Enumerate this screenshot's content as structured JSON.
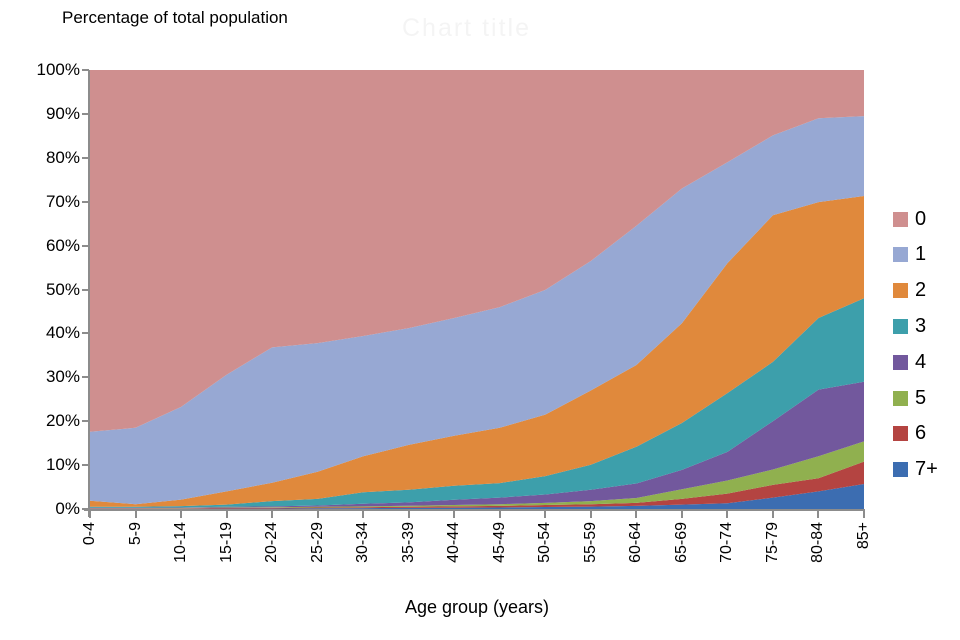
{
  "watermark": {
    "text": "Chart title"
  },
  "chart_data": {
    "type": "area",
    "stacking": "percent",
    "title": "Percentage of total population",
    "xlabel": "Age group (years)",
    "ylabel": "",
    "ylim": [
      0,
      100
    ],
    "grid": false,
    "legend_position": "right",
    "yticks": [
      "0%",
      "10%",
      "20%",
      "30%",
      "40%",
      "50%",
      "60%",
      "70%",
      "80%",
      "90%",
      "100%"
    ],
    "categories": [
      "0-4",
      "5-9",
      "10-14",
      "15-19",
      "20-24",
      "25-29",
      "30-34",
      "35-39",
      "40-44",
      "45-49",
      "50-54",
      "55-59",
      "60-64",
      "65-69",
      "70-74",
      "75-79",
      "80-84",
      "85+"
    ],
    "series": [
      {
        "name": "0",
        "color": "#cf8f8f",
        "values": [
          82.3,
          81.4,
          76.7,
          69.4,
          63.2,
          62.2,
          60.6,
          58.8,
          56.5,
          54.0,
          50.1,
          43.5,
          35.5,
          27.0,
          21.0,
          14.9,
          11.0,
          10.5
        ]
      },
      {
        "name": "1",
        "color": "#97a8d3",
        "values": [
          15.7,
          17.4,
          21.1,
          26.6,
          30.8,
          29.3,
          27.4,
          26.6,
          26.8,
          27.5,
          28.4,
          29.5,
          31.7,
          30.7,
          23.0,
          18.2,
          19.1,
          18.2
        ]
      },
      {
        "name": "2",
        "color": "#e0893c",
        "values": [
          1.4,
          0.6,
          1.5,
          3.0,
          4.2,
          6.2,
          8.2,
          10.2,
          11.4,
          12.6,
          14.0,
          16.9,
          18.6,
          22.7,
          29.6,
          33.4,
          26.4,
          23.3
        ]
      },
      {
        "name": "3",
        "color": "#3d9fab",
        "values": [
          0.2,
          0.2,
          0.3,
          0.5,
          1.2,
          1.5,
          2.6,
          2.9,
          3.2,
          3.3,
          4.2,
          5.7,
          8.4,
          10.7,
          13.4,
          13.5,
          16.3,
          19.0
        ]
      },
      {
        "name": "4",
        "color": "#72589d",
        "values": [
          0.1,
          0.1,
          0.1,
          0.15,
          0.2,
          0.3,
          0.6,
          0.75,
          1.2,
          1.5,
          1.9,
          2.6,
          3.3,
          4.4,
          6.5,
          11.0,
          15.2,
          13.6
        ]
      },
      {
        "name": "5",
        "color": "#90b04f",
        "values": [
          0.05,
          0.05,
          0.1,
          0.1,
          0.1,
          0.15,
          0.2,
          0.25,
          0.3,
          0.4,
          0.5,
          0.7,
          1.1,
          2.2,
          3.0,
          3.5,
          5.0,
          4.6
        ]
      },
      {
        "name": "6",
        "color": "#b44441",
        "values": [
          0.1,
          0.1,
          0.1,
          0.15,
          0.2,
          0.2,
          0.2,
          0.25,
          0.3,
          0.35,
          0.45,
          0.55,
          0.7,
          1.3,
          2.2,
          2.9,
          3.0,
          5.1
        ]
      },
      {
        "name": "7+",
        "color": "#3c6db1",
        "values": [
          0.05,
          0.05,
          0.05,
          0.1,
          0.1,
          0.15,
          0.2,
          0.25,
          0.3,
          0.35,
          0.45,
          0.55,
          0.7,
          1.0,
          1.3,
          2.6,
          4.0,
          5.7
        ]
      }
    ]
  }
}
